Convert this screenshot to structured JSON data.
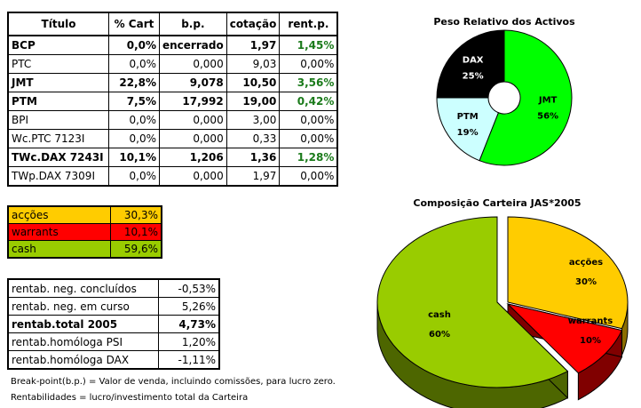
{
  "main_table": {
    "headers": [
      "Título",
      "% Cart",
      "b.p.",
      "cotação",
      "rent.p."
    ],
    "rows": [
      {
        "titulo": "BCP",
        "cart": "0,0%",
        "bp": "encerrado",
        "cotacao": "1,97",
        "rent": "1,45%",
        "bold": true,
        "positive": true
      },
      {
        "titulo": "PTC",
        "cart": "0,0%",
        "bp": "0,000",
        "cotacao": "9,03",
        "rent": "0,00%",
        "bold": false,
        "positive": false
      },
      {
        "titulo": "JMT",
        "cart": "22,8%",
        "bp": "9,078",
        "cotacao": "10,50",
        "rent": "3,56%",
        "bold": true,
        "positive": true
      },
      {
        "titulo": "PTM",
        "cart": "7,5%",
        "bp": "17,992",
        "cotacao": "19,00",
        "rent": "0,42%",
        "bold": true,
        "positive": true
      },
      {
        "titulo": "BPI",
        "cart": "0,0%",
        "bp": "0,000",
        "cotacao": "3,00",
        "rent": "0,00%",
        "bold": false,
        "positive": false
      },
      {
        "titulo": "Wc.PTC 7123I",
        "cart": "0,0%",
        "bp": "0,000",
        "cotacao": "0,33",
        "rent": "0,00%",
        "bold": false,
        "positive": false
      },
      {
        "titulo": "TWc.DAX 7243I",
        "cart": "10,1%",
        "bp": "1,206",
        "cotacao": "1,36",
        "rent": "1,28%",
        "bold": true,
        "positive": true
      },
      {
        "titulo": "TWp.DAX 7309I",
        "cart": "0,0%",
        "bp": "0,000",
        "cotacao": "1,97",
        "rent": "0,00%",
        "bold": false,
        "positive": false
      }
    ]
  },
  "allocation_table": {
    "rows": [
      {
        "label": "acções",
        "value": "30,3%",
        "color": "#ffcc00"
      },
      {
        "label": "warrants",
        "value": "10,1%",
        "color": "#ff0000"
      },
      {
        "label": "cash",
        "value": "59,6%",
        "color": "#99cc00"
      }
    ]
  },
  "returns_table": {
    "rows": [
      {
        "label": "rentab. neg. concluídos",
        "value": "-0,53%",
        "bold": false
      },
      {
        "label": "rentab. neg. em curso",
        "value": "5,26%",
        "bold": false
      },
      {
        "label": "rentab.total 2005",
        "value": "4,73%",
        "bold": true
      },
      {
        "label": "rentab.homóloga PSI",
        "value": "1,20%",
        "bold": false
      },
      {
        "label": "rentab.homóloga DAX",
        "value": "-1,11%",
        "bold": false
      }
    ]
  },
  "notes": [
    "Break-point(b.p.) = Valor de venda, incluindo comissões, para lucro zero.",
    "Rentabilidades = lucro/investimento total da Carteira"
  ],
  "chart_data": [
    {
      "type": "pie",
      "variant": "doughnut",
      "title": "Peso Relativo dos Activos",
      "categories": [
        "JMT",
        "PTM",
        "DAX"
      ],
      "values": [
        56,
        19,
        25
      ],
      "labels": [
        "56%",
        "19%",
        "25%"
      ],
      "colors": [
        "#00ff00",
        "#ccffff",
        "#000000"
      ]
    },
    {
      "type": "pie",
      "variant": "3d-exploded",
      "title": "Composição Carteira JAS*2005",
      "categories": [
        "acções",
        "warrants",
        "cash"
      ],
      "values": [
        30,
        10,
        60
      ],
      "labels": [
        "30%",
        "10%",
        "60%"
      ],
      "colors": [
        "#ffcc00",
        "#ff0000",
        "#99cc00"
      ]
    }
  ]
}
